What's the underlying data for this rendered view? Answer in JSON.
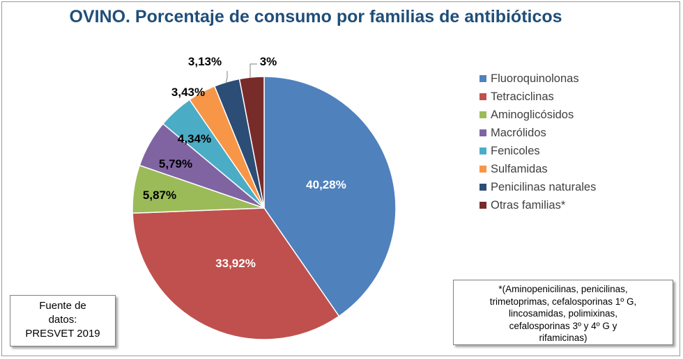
{
  "title": "OVINO. Porcentaje de  consumo por familias de antibióticos",
  "chart_data": {
    "type": "pie",
    "title": "OVINO. Porcentaje de  consumo por familias de antibióticos",
    "slices": [
      {
        "name": "Fluoroquinolonas",
        "value": 40.28,
        "label": "40,28%",
        "color": "#4f81bd"
      },
      {
        "name": "Tetraciclinas",
        "value": 33.92,
        "label": "33,92%",
        "color": "#c0504d"
      },
      {
        "name": "Aminoglicósidos",
        "value": 5.87,
        "label": "5,87%",
        "color": "#9bbb59"
      },
      {
        "name": "Macrólidos",
        "value": 5.79,
        "label": "5,79%",
        "color": "#8064a2"
      },
      {
        "name": "Fenicoles",
        "value": 4.34,
        "label": "4,34%",
        "color": "#4bacc6"
      },
      {
        "name": "Sulfamidas",
        "value": 3.43,
        "label": "3,43%",
        "color": "#f79646"
      },
      {
        "name": "Penicilinas naturales",
        "value": 3.13,
        "label": "3,13%",
        "color": "#2c4d75"
      },
      {
        "name": "Otras familias*",
        "value": 3.0,
        "label": "3%",
        "color": "#772c2a"
      }
    ],
    "legend_position": "right"
  },
  "source": {
    "lines": [
      "Fuente de",
      "datos:",
      "PRESVET 2019"
    ]
  },
  "note": {
    "lines": [
      "*(Aminopenicilinas, penicilinas,",
      "trimetoprimas, cefalosporinas 1º G,",
      "lincosamidas, polimixinas,",
      "cefalosporinas 3º y 4º G y",
      "rifamicinas)"
    ]
  }
}
